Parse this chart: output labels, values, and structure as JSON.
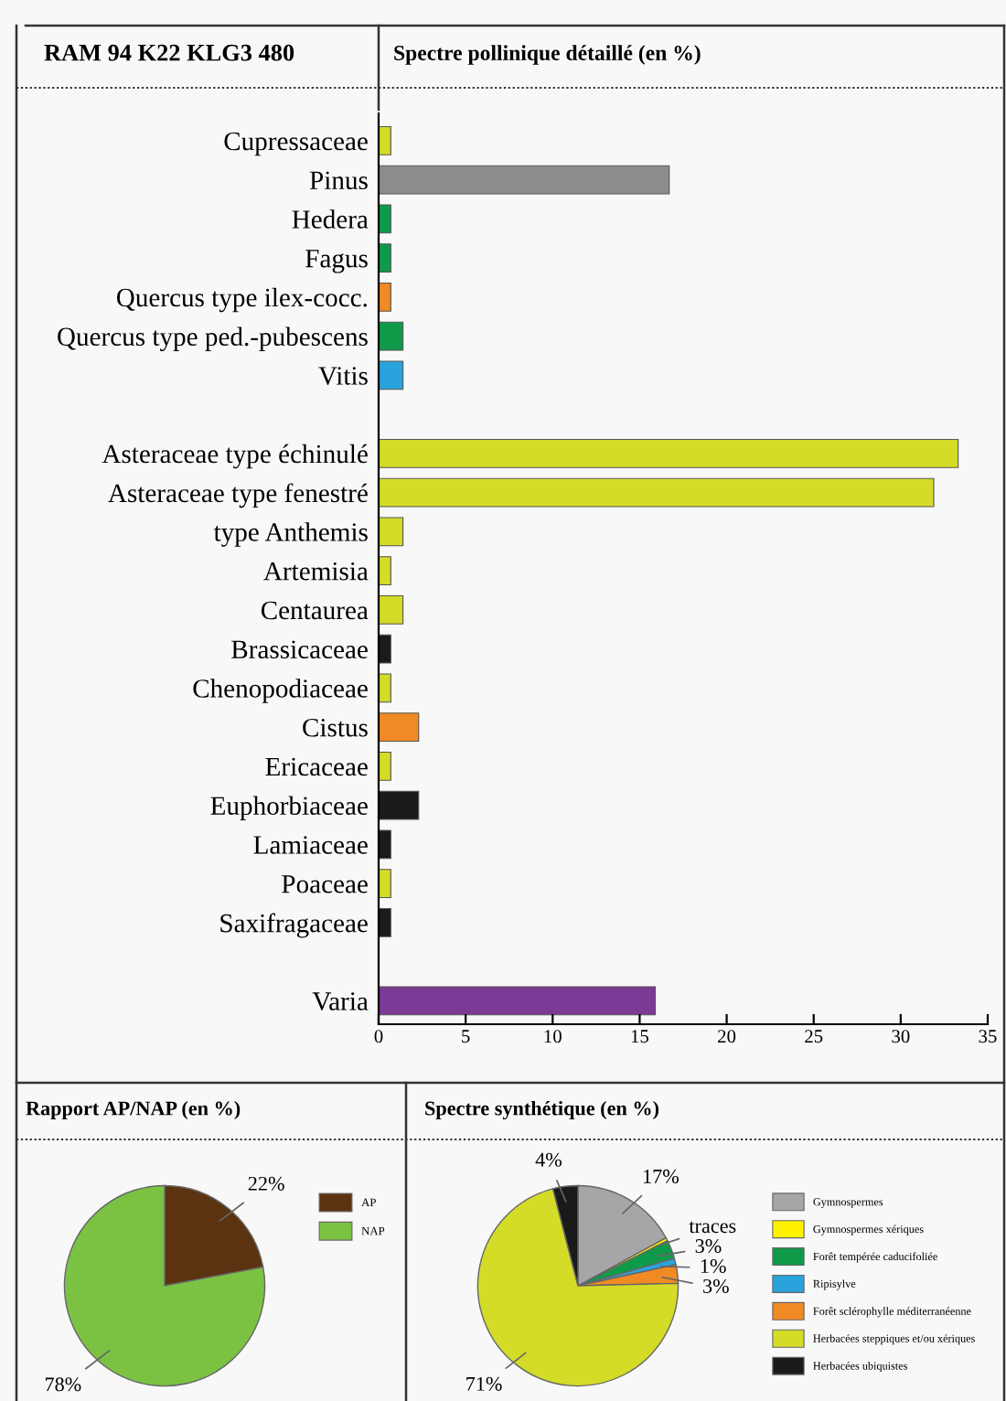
{
  "chart_data": [
    {
      "type": "bar",
      "orientation": "horizontal",
      "title": "Spectre pollinique détaillé (en %)",
      "annotations": [
        "RAM 94 K22 KLG3 480"
      ],
      "categories": [
        "Cupressaceae",
        "Pinus",
        "Hedera",
        "Fagus",
        "Quercus type ilex-cocc.",
        "Quercus type ped.-pubescens",
        "Vitis",
        null,
        "Asteraceae type échinulé",
        "Asteraceae type fenestré",
        "type Anthemis",
        "Artemisia",
        "Centaurea",
        "Brassicaceae",
        "Chenopodiaceae",
        "Cistus",
        "Ericaceae",
        "Euphorbiaceae",
        "Lamiaceae",
        "Poaceae",
        "Saxifragaceae",
        null,
        "Varia"
      ],
      "values": [
        0.7,
        16.7,
        0.7,
        0.7,
        0.7,
        1.4,
        1.4,
        null,
        33.3,
        31.9,
        1.4,
        0.7,
        1.4,
        0.7,
        0.7,
        2.3,
        0.7,
        2.3,
        0.7,
        0.7,
        0.7,
        null,
        15.9
      ],
      "colors": [
        "#d4dc28",
        "#8c8c8c",
        "#0f9a4a",
        "#0f9a4a",
        "#f08a24",
        "#0f9a4a",
        "#29a3dc",
        null,
        "#d4dc28",
        "#d4dc28",
        "#d4dc28",
        "#d4dc28",
        "#d4dc28",
        "#1a1a1a",
        "#d4dc28",
        "#f08a24",
        "#d4dc28",
        "#1a1a1a",
        "#1a1a1a",
        "#d4dc28",
        "#1a1a1a",
        null,
        "#7b3a96"
      ],
      "xlim": [
        0,
        35
      ],
      "xticks": [
        0,
        5,
        10,
        15,
        20,
        25,
        30,
        35
      ],
      "grid": false
    },
    {
      "type": "pie",
      "title": "Rapport AP/NAP (en %)",
      "categories": [
        "AP",
        "NAP"
      ],
      "values": [
        22,
        78
      ],
      "value_labels": [
        "22%",
        "78%"
      ],
      "colors": [
        "#5c3310",
        "#7cc242"
      ],
      "legend": "right"
    },
    {
      "type": "pie",
      "title": "Spectre synthétique (en %)",
      "categories": [
        "Gymnospermes",
        "Gymnospermes xériques",
        "Forêt tempérée caducifoliée",
        "Ripisylve",
        "Forêt sclérophylle méditerranéenne",
        "Herbacées steppiques et/ou xériques",
        "Herbacées ubiquistes"
      ],
      "values": [
        17,
        0.5,
        3,
        1,
        3,
        71,
        4
      ],
      "value_labels": [
        "17%",
        "traces",
        "3%",
        "1%",
        "3%",
        "71%",
        "4%"
      ],
      "colors": [
        "#a6a6a8",
        "#fff200",
        "#0f9a4a",
        "#29a3dc",
        "#f08a24",
        "#d4dc28",
        "#1a1a1a"
      ],
      "legend": "right"
    }
  ]
}
